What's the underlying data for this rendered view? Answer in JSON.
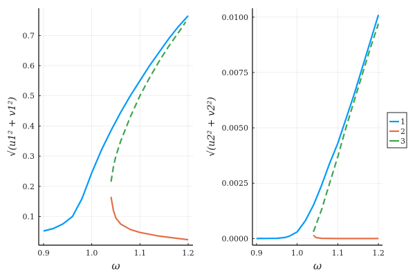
{
  "chart_data": [
    {
      "type": "line",
      "title": "",
      "xlabel": "ω",
      "ylabel": "√(u1² + v1²)",
      "xlim": [
        0.89,
        1.21
      ],
      "ylim": [
        0.005,
        0.79
      ],
      "xticks": [
        0.9,
        1.0,
        1.1,
        1.2
      ],
      "xtick_labels": [
        "0.9",
        "1.0",
        "1.1",
        "1.2"
      ],
      "yticks": [
        0.1,
        0.2,
        0.3,
        0.4,
        0.5,
        0.6,
        0.7
      ],
      "ytick_labels": [
        "0.1",
        "0.2",
        "0.3",
        "0.4",
        "0.5",
        "0.6",
        "0.7"
      ],
      "grid": true,
      "series": [
        {
          "name": "1",
          "color": "#009AFA",
          "dash": false,
          "x": [
            0.9,
            0.92,
            0.94,
            0.96,
            0.98,
            1.0,
            1.02,
            1.04,
            1.06,
            1.08,
            1.1,
            1.12,
            1.14,
            1.16,
            1.18,
            1.2
          ],
          "y": [
            0.052,
            0.06,
            0.075,
            0.1,
            0.16,
            0.245,
            0.32,
            0.385,
            0.445,
            0.5,
            0.55,
            0.6,
            0.645,
            0.69,
            0.73,
            0.765
          ]
        },
        {
          "name": "2",
          "color": "#E36F47",
          "dash": false,
          "x": [
            1.04,
            1.045,
            1.05,
            1.06,
            1.08,
            1.1,
            1.14,
            1.2
          ],
          "y": [
            0.165,
            0.12,
            0.095,
            0.075,
            0.057,
            0.047,
            0.035,
            0.023
          ]
        },
        {
          "name": "3",
          "color": "#3EA44E",
          "dash": true,
          "x": [
            1.04,
            1.045,
            1.05,
            1.06,
            1.08,
            1.1,
            1.12,
            1.14,
            1.16,
            1.18,
            1.195
          ],
          "y": [
            0.215,
            0.265,
            0.3,
            0.35,
            0.43,
            0.5,
            0.56,
            0.615,
            0.665,
            0.71,
            0.745
          ]
        }
      ]
    },
    {
      "type": "line",
      "title": "",
      "xlabel": "ω",
      "ylabel": "√(u2² + v2²)",
      "xlim": [
        0.89,
        1.21
      ],
      "ylim": [
        -0.0003,
        0.0104
      ],
      "xticks": [
        0.9,
        1.0,
        1.1,
        1.2
      ],
      "xtick_labels": [
        "0.9",
        "1.0",
        "1.1",
        "1.2"
      ],
      "yticks": [
        0,
        0.0025,
        0.005,
        0.0075,
        0.01
      ],
      "ytick_labels": [
        "0.0000",
        "0.0025",
        "0.0050",
        "0.0075",
        "0.0100"
      ],
      "grid": true,
      "legend": {
        "placement": "outer-right",
        "entries": [
          "1",
          "2",
          "3"
        ]
      },
      "series": [
        {
          "name": "1",
          "color": "#009AFA",
          "dash": false,
          "x": [
            0.9,
            0.95,
            0.97,
            0.98,
            1.0,
            1.02,
            1.04,
            1.06,
            1.08,
            1.1,
            1.12,
            1.14,
            1.16,
            1.18,
            1.2
          ],
          "y": [
            0,
            1e-05,
            5e-05,
            0.0001,
            0.0003,
            0.0008,
            0.0015,
            0.0024,
            0.0034,
            0.0043,
            0.0054,
            0.0065,
            0.0077,
            0.0089,
            0.0101
          ]
        },
        {
          "name": "2",
          "color": "#E36F47",
          "dash": false,
          "x": [
            1.04,
            1.045,
            1.05,
            1.06,
            1.1,
            1.2
          ],
          "y": [
            0.00015,
            6e-05,
            3e-05,
            1e-05,
            0,
            0
          ]
        },
        {
          "name": "3",
          "color": "#3EA44E",
          "dash": true,
          "x": [
            1.04,
            1.06,
            1.08,
            1.1,
            1.12,
            1.14,
            1.16,
            1.18,
            1.2
          ],
          "y": [
            0.0003,
            0.0013,
            0.0025,
            0.0037,
            0.005,
            0.0062,
            0.0074,
            0.0086,
            0.0097
          ]
        }
      ]
    }
  ]
}
